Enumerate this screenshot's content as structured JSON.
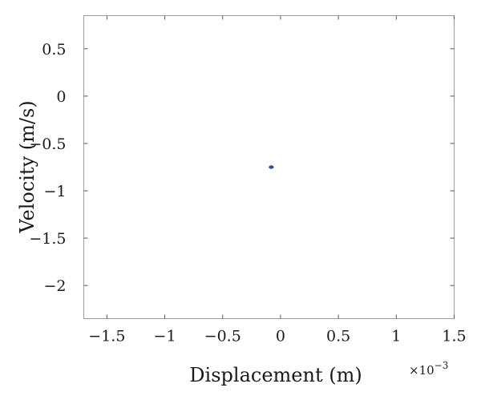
{
  "chart_data": {
    "type": "scatter",
    "xlabel": "Displacement (m)",
    "ylabel": "Velocity (m/s)",
    "x_exponent_label": "×10",
    "x_exponent_power": "−3",
    "x_scale_factor": 0.001,
    "xlim": [
      -1.7,
      1.5
    ],
    "ylim": [
      -2.35,
      0.85
    ],
    "x_ticks": [
      {
        "value": -1.5,
        "label": "−1.5"
      },
      {
        "value": -1,
        "label": "−1"
      },
      {
        "value": -0.5,
        "label": "−0.5"
      },
      {
        "value": 0,
        "label": "0"
      },
      {
        "value": 0.5,
        "label": "0.5"
      },
      {
        "value": 1,
        "label": "1"
      },
      {
        "value": 1.5,
        "label": "1.5"
      }
    ],
    "y_ticks": [
      {
        "value": 0.5,
        "label": "0.5"
      },
      {
        "value": 0,
        "label": "0"
      },
      {
        "value": -0.5,
        "label": "−0.5"
      },
      {
        "value": -1,
        "label": "−1"
      },
      {
        "value": -1.5,
        "label": "−1.5"
      },
      {
        "value": -2,
        "label": "−2"
      }
    ],
    "points": [
      {
        "x": -8e-05,
        "y": -0.75
      }
    ],
    "marker_color": "#2f4f9e",
    "grid": false,
    "box": true
  }
}
